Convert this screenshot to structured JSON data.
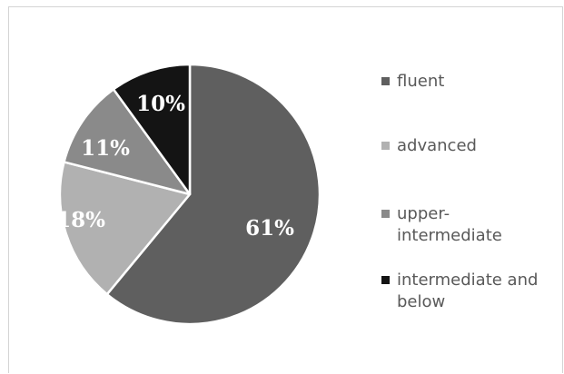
{
  "chart_data": {
    "type": "pie",
    "categories": [
      "fluent",
      "advanced",
      "upper-intermediate",
      "intermediate and below"
    ],
    "values": [
      61,
      18,
      11,
      10
    ],
    "labels": [
      "61%",
      "18%",
      "11%",
      "10%"
    ],
    "colors": [
      "#5f5f5f",
      "#b1b1b1",
      "#8a8a8a",
      "#141414"
    ],
    "start_angle_deg": 0,
    "direction": "clockwise",
    "legend_position": "right",
    "legend": [
      {
        "label": "fluent",
        "color": "#5f5f5f"
      },
      {
        "label": "advanced",
        "color": "#b1b1b1"
      },
      {
        "label": "upper-\nintermediate",
        "color": "#8a8a8a"
      },
      {
        "label": "intermediate and\nbelow",
        "color": "#141414"
      }
    ]
  }
}
